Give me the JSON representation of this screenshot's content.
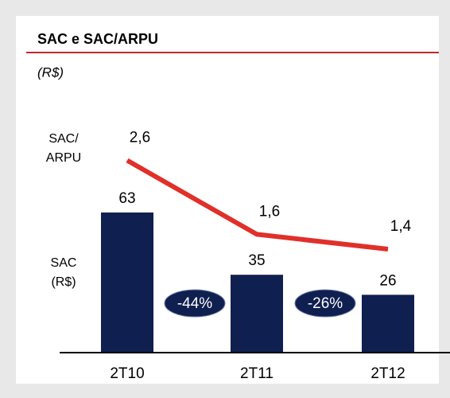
{
  "chart_data": {
    "type": "bar-line",
    "title": "SAC e SAC/ARPU",
    "subtitle": "(R$)",
    "categories": [
      "2T10",
      "2T11",
      "2T12"
    ],
    "series": [
      {
        "name": "SAC",
        "color": "#0f1f4f",
        "values": [
          63,
          35,
          26
        ]
      },
      {
        "name": "SAC/ARPU",
        "color": "#e0302a",
        "axis": "y2",
        "values": [
          2.6,
          1.6,
          1.4
        ],
        "value_labels": [
          "2,6",
          "1,6",
          "1,4"
        ]
      }
    ],
    "series_labels": [
      [
        "SAC",
        "(R$)"
      ],
      [
        "SAC/",
        "ARPU"
      ]
    ],
    "annotations": [
      "-44%",
      "-26%"
    ],
    "ylim": [
      0,
      112
    ],
    "y2lim": [
      0,
      3.37
    ]
  }
}
